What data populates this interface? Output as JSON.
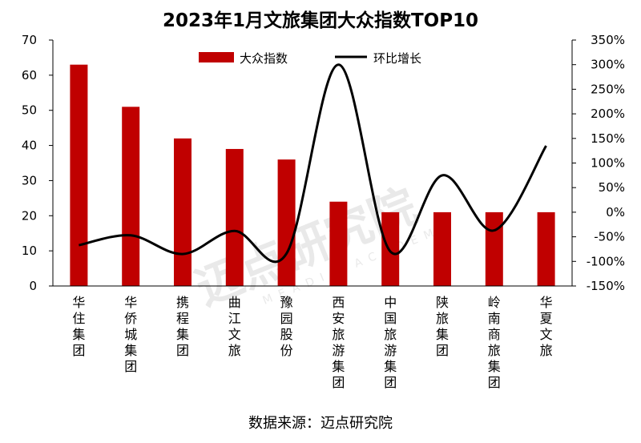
{
  "chart_data": {
    "type": "bar",
    "title": "2023年1月文旅集团大众指数TOP10",
    "categories": [
      "华住集团",
      "华侨城集团",
      "携程集团",
      "曲江文旅",
      "豫园股份",
      "西安旅游集团",
      "中国旅游集团",
      "陕旅集团",
      "岭南商旅集团",
      "华夏文旅"
    ],
    "series": [
      {
        "name": "大众指数",
        "axis": "left",
        "type": "bar",
        "color": "#c00000",
        "values": [
          63,
          51,
          42,
          39,
          36,
          24,
          21,
          21,
          21,
          21
        ]
      },
      {
        "name": "环比增长",
        "axis": "right",
        "type": "line",
        "color": "#000000",
        "values": [
          -67,
          -47,
          -85,
          -38,
          -84,
          300,
          -80,
          75,
          -37,
          135
        ]
      }
    ],
    "y_left": {
      "min": 0,
      "max": 70,
      "ticks": [
        "0",
        "10",
        "20",
        "30",
        "40",
        "50",
        "60",
        "70"
      ]
    },
    "y_right": {
      "min": -150,
      "max": 350,
      "ticks": [
        "-150%",
        "-100%",
        "-50%",
        "0%",
        "50%",
        "100%",
        "150%",
        "200%",
        "250%",
        "300%",
        "350%"
      ]
    },
    "legend": [
      "大众指数",
      "环比增长"
    ],
    "legend_position": "top-center"
  },
  "source_text": "数据来源：迈点研究院",
  "watermark_text": "迈点研究院",
  "watermark_subtext": "MEADIN ACADEMY"
}
